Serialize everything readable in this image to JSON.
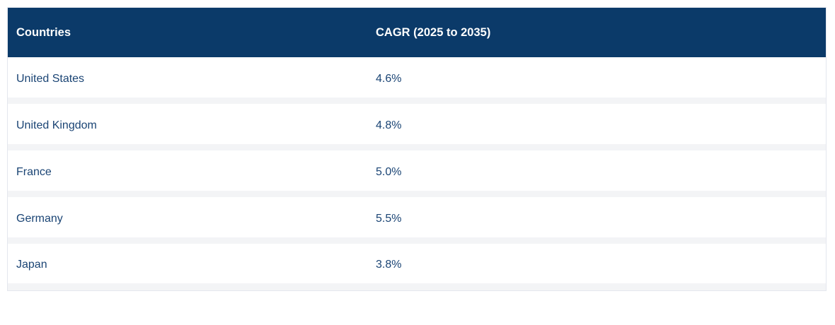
{
  "table": {
    "header": {
      "countries_label": "Countries",
      "cagr_label": "CAGR (2025 to 2035)"
    },
    "rows": [
      {
        "country": "United States",
        "cagr": "4.6%"
      },
      {
        "country": "United Kingdom",
        "cagr": "4.8%"
      },
      {
        "country": "France",
        "cagr": "5.0%"
      },
      {
        "country": "Germany",
        "cagr": "5.5%"
      },
      {
        "country": "Japan",
        "cagr": "3.8%"
      }
    ],
    "colors": {
      "header_background": "#0b3a69",
      "header_text": "#ffffff",
      "row_background": "#ffffff",
      "row_text": "#1a4474",
      "row_separator": "#f3f4f6",
      "outer_border": "#e4e7ee"
    }
  },
  "chart_data": {
    "type": "table",
    "title": "",
    "columns": [
      "Countries",
      "CAGR (2025 to 2035)"
    ],
    "categories": [
      "United States",
      "United Kingdom",
      "France",
      "Germany",
      "Japan"
    ],
    "values": [
      4.6,
      4.8,
      5.0,
      5.5,
      3.8
    ],
    "value_unit": "percent",
    "value_period": "2025 to 2035",
    "legend": "off",
    "grid": "off"
  }
}
